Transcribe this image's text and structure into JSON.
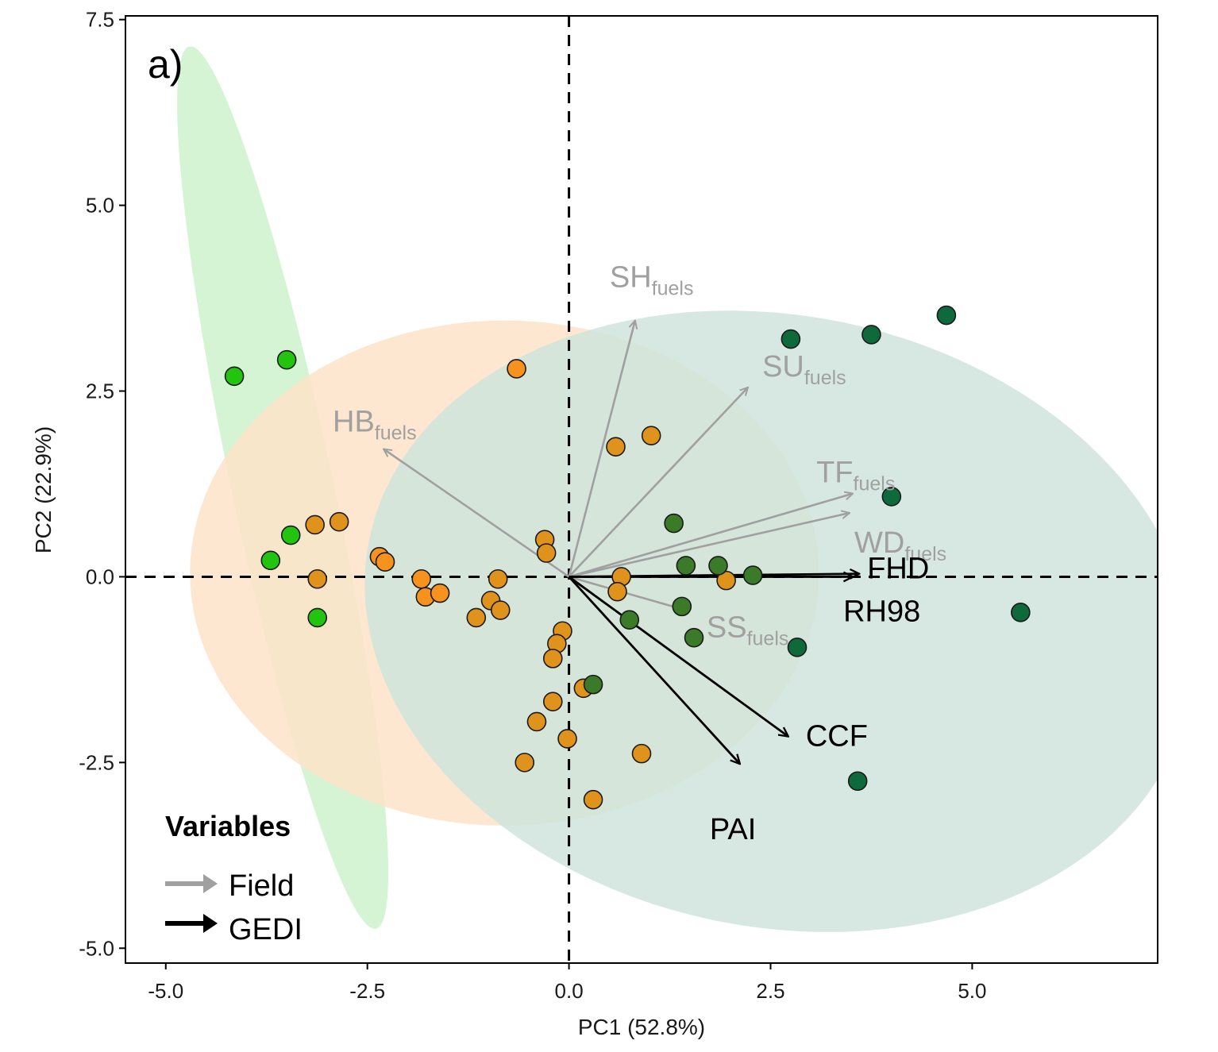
{
  "chart_data": {
    "type": "scatter",
    "panel_label": "a)",
    "xlabel": "PC1 (52.8%)",
    "ylabel": "PC2 (22.9%)",
    "xlim": [
      -5.5,
      7.3
    ],
    "ylim": [
      -5.2,
      7.55
    ],
    "x_ticks": [
      "-5.0",
      "-2.5",
      "0.0",
      "2.5",
      "5.0"
    ],
    "y_ticks": [
      "-5.0",
      "-2.5",
      "0.0",
      "2.5",
      "5.0",
      "7.5"
    ],
    "reference_lines": {
      "x": 0,
      "y": 0,
      "style": "dashed"
    },
    "grid": false,
    "groups": [
      {
        "color": "#22c40f",
        "ellipse_fill": "#ccf2cc",
        "ellipse": {
          "cx": -3.55,
          "cy": 1.2,
          "rx": 6.05,
          "ry": 0.63,
          "angle_deg": -79
        },
        "points": [
          [
            -4.15,
            2.7
          ],
          [
            -3.5,
            2.92
          ],
          [
            -3.45,
            0.56
          ],
          [
            -3.7,
            0.22
          ],
          [
            -3.12,
            -0.55
          ]
        ]
      },
      {
        "color": "#f7921e",
        "ellipse_fill": "#fde3c8",
        "ellipse": {
          "cx": -0.8,
          "cy": 0.05,
          "rx": 3.9,
          "ry": 3.4,
          "angle_deg": 0
        },
        "points": [
          [
            -0.65,
            2.8
          ],
          [
            -2.35,
            0.27
          ],
          [
            -2.28,
            0.2
          ],
          [
            -1.83,
            -0.03
          ],
          [
            -1.78,
            -0.27
          ],
          [
            -1.6,
            -0.22
          ]
        ]
      },
      {
        "color": "#e0931c",
        "ellipse_fill": "#dccfb3",
        "ellipse": null,
        "points": [
          [
            -3.15,
            0.7
          ],
          [
            -2.85,
            0.74
          ],
          [
            -3.12,
            -0.03
          ],
          [
            -0.3,
            0.5
          ],
          [
            -0.28,
            0.32
          ],
          [
            -0.88,
            -0.03
          ],
          [
            -0.97,
            -0.32
          ],
          [
            -0.85,
            -0.45
          ],
          [
            -1.15,
            -0.55
          ],
          [
            -0.08,
            -0.73
          ],
          [
            -0.15,
            -0.9
          ],
          [
            -0.2,
            -1.1
          ],
          [
            -0.2,
            -1.68
          ],
          [
            -0.4,
            -1.95
          ],
          [
            -0.02,
            -2.18
          ],
          [
            -0.55,
            -2.5
          ],
          [
            0.18,
            -1.5
          ],
          [
            0.3,
            -3.0
          ],
          [
            0.9,
            -2.38
          ],
          [
            0.58,
            1.75
          ],
          [
            1.02,
            1.9
          ],
          [
            0.65,
            0.0
          ],
          [
            1.95,
            -0.05
          ],
          [
            0.6,
            -0.2
          ]
        ]
      },
      {
        "color": "#3a7a28",
        "ellipse_fill": null,
        "ellipse": null,
        "points": [
          [
            1.3,
            0.72
          ],
          [
            1.45,
            0.15
          ],
          [
            1.85,
            0.15
          ],
          [
            2.28,
            0.02
          ],
          [
            0.75,
            -0.58
          ],
          [
            1.4,
            -0.4
          ],
          [
            1.55,
            -0.82
          ],
          [
            0.3,
            -1.45
          ]
        ]
      },
      {
        "color": "#0e6a3a",
        "ellipse_fill": "#cfe4dc",
        "ellipse": {
          "cx": 2.6,
          "cy": -0.6,
          "rx": 5.2,
          "ry": 4.1,
          "angle_deg": -15
        },
        "points": [
          [
            2.75,
            3.2
          ],
          [
            3.75,
            3.26
          ],
          [
            4.68,
            3.52
          ],
          [
            4.0,
            1.08
          ],
          [
            5.6,
            -0.48
          ],
          [
            2.83,
            -0.95
          ],
          [
            3.58,
            -2.75
          ]
        ]
      }
    ],
    "vectors": [
      {
        "type": "Field",
        "label": "SH",
        "sub": "fuels",
        "x": 0.82,
        "y": 3.45,
        "color": "#a0a0a0"
      },
      {
        "type": "Field",
        "label": "SU",
        "sub": "fuels",
        "x": 2.22,
        "y": 2.55,
        "color": "#a0a0a0"
      },
      {
        "type": "Field",
        "label": "HB",
        "sub": "fuels",
        "x": -2.3,
        "y": 1.72,
        "color": "#a0a0a0"
      },
      {
        "type": "Field",
        "label": "TF",
        "sub": "fuels",
        "x": 3.52,
        "y": 1.12,
        "color": "#a0a0a0"
      },
      {
        "type": "Field",
        "label": "WD",
        "sub": "fuels",
        "x": 3.48,
        "y": 0.86,
        "color": "#a0a0a0"
      },
      {
        "type": "Field",
        "label": "SS",
        "sub": "fuels",
        "x": 1.45,
        "y": -0.45,
        "color": "#a0a0a0"
      },
      {
        "type": "GEDI",
        "label": "FHD",
        "sub": "",
        "x": 3.6,
        "y": 0.04,
        "color": "#000000"
      },
      {
        "type": "GEDI",
        "label": "RH98",
        "sub": "",
        "x": 3.52,
        "y": 0.0,
        "color": "#000000"
      },
      {
        "type": "GEDI",
        "label": "CCF",
        "sub": "",
        "x": 2.72,
        "y": -2.15,
        "color": "#000000"
      },
      {
        "type": "GEDI",
        "label": "PAI",
        "sub": "",
        "x": 2.12,
        "y": -2.52,
        "color": "#000000"
      }
    ],
    "legend": {
      "title": "Variables",
      "position": "bottom-left",
      "items": [
        {
          "label": "Field",
          "color": "#a0a0a0"
        },
        {
          "label": "GEDI",
          "color": "#000000"
        }
      ]
    }
  }
}
